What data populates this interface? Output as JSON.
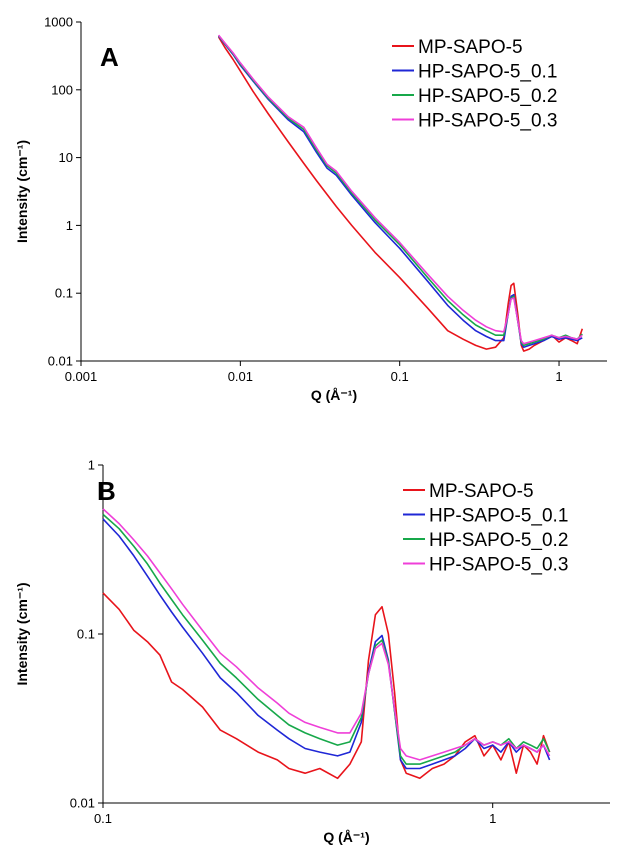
{
  "colors": {
    "MP-SAPO-5": "#e8141b",
    "HP-SAPO-5_0.1": "#1f27d6",
    "HP-SAPO-5_0.2": "#17a84a",
    "HP-SAPO-5_0.3": "#ef3fd8"
  },
  "chart_data": [
    {
      "type": "line",
      "panel": "A",
      "xscale": "log",
      "yscale": "log",
      "xlim": [
        0.001,
        2
      ],
      "ylim": [
        0.01,
        1000
      ],
      "xticks": [
        "0.001",
        "0.01",
        "0.1",
        "1"
      ],
      "yticks": [
        "0.01",
        "0.1",
        "1",
        "10",
        "100",
        "1000"
      ],
      "xlabel": "Q (Å⁻¹)",
      "ylabel": "Intensity (cm⁻¹)",
      "legend": "top-right",
      "series": [
        {
          "name": "MP-SAPO-5",
          "x": [
            0.0073,
            0.008,
            0.009,
            0.01,
            0.012,
            0.015,
            0.02,
            0.025,
            0.03,
            0.04,
            0.05,
            0.07,
            0.1,
            0.15,
            0.2,
            0.25,
            0.3,
            0.35,
            0.4,
            0.45,
            0.48,
            0.5,
            0.52,
            0.55,
            0.58,
            0.6,
            0.65,
            0.7,
            0.8,
            0.9,
            1.0,
            1.1,
            1.2,
            1.3,
            1.4
          ],
          "y": [
            600,
            420,
            280,
            190,
            95,
            44,
            17,
            8.2,
            4.6,
            1.9,
            1.0,
            0.4,
            0.17,
            0.06,
            0.028,
            0.021,
            0.017,
            0.015,
            0.016,
            0.022,
            0.07,
            0.13,
            0.14,
            0.05,
            0.017,
            0.014,
            0.015,
            0.017,
            0.02,
            0.024,
            0.019,
            0.022,
            0.02,
            0.018,
            0.03
          ]
        },
        {
          "name": "HP-SAPO-5_0.1",
          "x": [
            0.0073,
            0.008,
            0.009,
            0.01,
            0.012,
            0.015,
            0.02,
            0.025,
            0.03,
            0.035,
            0.04,
            0.05,
            0.07,
            0.1,
            0.15,
            0.2,
            0.25,
            0.3,
            0.35,
            0.4,
            0.45,
            0.48,
            0.5,
            0.52,
            0.55,
            0.58,
            0.6,
            0.65,
            0.7,
            0.8,
            0.9,
            1.0,
            1.1,
            1.2,
            1.3,
            1.4
          ],
          "y": [
            620,
            470,
            330,
            230,
            135,
            72,
            36,
            24,
            12,
            7,
            5.5,
            2.8,
            1.1,
            0.46,
            0.15,
            0.066,
            0.04,
            0.028,
            0.023,
            0.02,
            0.02,
            0.05,
            0.09,
            0.095,
            0.04,
            0.018,
            0.016,
            0.017,
            0.018,
            0.02,
            0.023,
            0.021,
            0.022,
            0.021,
            0.02,
            0.022
          ]
        },
        {
          "name": "HP-SAPO-5_0.2",
          "x": [
            0.0073,
            0.008,
            0.009,
            0.01,
            0.012,
            0.015,
            0.02,
            0.025,
            0.03,
            0.035,
            0.04,
            0.05,
            0.07,
            0.1,
            0.15,
            0.2,
            0.25,
            0.3,
            0.35,
            0.4,
            0.45,
            0.48,
            0.5,
            0.52,
            0.55,
            0.58,
            0.6,
            0.65,
            0.7,
            0.8,
            0.9,
            1.0,
            1.1,
            1.2,
            1.3,
            1.4
          ],
          "y": [
            630,
            480,
            340,
            240,
            140,
            75,
            38,
            26,
            13,
            7.6,
            5.9,
            3.0,
            1.2,
            0.52,
            0.17,
            0.078,
            0.048,
            0.034,
            0.028,
            0.024,
            0.024,
            0.05,
            0.085,
            0.09,
            0.04,
            0.019,
            0.017,
            0.018,
            0.019,
            0.021,
            0.024,
            0.022,
            0.024,
            0.022,
            0.021,
            0.025
          ]
        },
        {
          "name": "HP-SAPO-5_0.3",
          "x": [
            0.0073,
            0.008,
            0.009,
            0.01,
            0.012,
            0.015,
            0.02,
            0.025,
            0.03,
            0.035,
            0.04,
            0.05,
            0.07,
            0.1,
            0.15,
            0.2,
            0.25,
            0.3,
            0.35,
            0.4,
            0.45,
            0.48,
            0.5,
            0.52,
            0.55,
            0.58,
            0.6,
            0.65,
            0.7,
            0.8,
            0.9,
            1.0,
            1.1,
            1.2,
            1.3,
            1.4
          ],
          "y": [
            640,
            490,
            350,
            250,
            145,
            78,
            40,
            28,
            14,
            8.0,
            6.3,
            3.2,
            1.3,
            0.56,
            0.19,
            0.09,
            0.056,
            0.04,
            0.032,
            0.028,
            0.027,
            0.05,
            0.082,
            0.085,
            0.04,
            0.02,
            0.018,
            0.019,
            0.02,
            0.022,
            0.024,
            0.022,
            0.023,
            0.022,
            0.021,
            0.024
          ]
        }
      ]
    },
    {
      "type": "line",
      "panel": "B",
      "xscale": "log",
      "yscale": "log",
      "xlim": [
        0.1,
        2
      ],
      "ylim": [
        0.01,
        1
      ],
      "xticks": [
        "0.1",
        "1"
      ],
      "yticks": [
        "0.01",
        "0.1",
        "1"
      ],
      "xlabel": "Q (Å⁻¹)",
      "ylabel": "Intensity (cm⁻¹)",
      "legend": "top-right",
      "series": [
        {
          "name": "MP-SAPO-5",
          "x": [
            0.1,
            0.11,
            0.12,
            0.13,
            0.14,
            0.15,
            0.16,
            0.18,
            0.2,
            0.22,
            0.25,
            0.28,
            0.3,
            0.33,
            0.36,
            0.4,
            0.43,
            0.46,
            0.48,
            0.5,
            0.52,
            0.54,
            0.56,
            0.58,
            0.6,
            0.65,
            0.7,
            0.75,
            0.8,
            0.85,
            0.9,
            0.95,
            1.0,
            1.05,
            1.1,
            1.15,
            1.2,
            1.25,
            1.3,
            1.35,
            1.4
          ],
          "y": [
            0.175,
            0.14,
            0.105,
            0.09,
            0.075,
            0.052,
            0.047,
            0.037,
            0.027,
            0.024,
            0.02,
            0.018,
            0.016,
            0.015,
            0.016,
            0.014,
            0.017,
            0.023,
            0.07,
            0.13,
            0.145,
            0.1,
            0.045,
            0.018,
            0.015,
            0.014,
            0.016,
            0.017,
            0.019,
            0.023,
            0.025,
            0.019,
            0.022,
            0.018,
            0.023,
            0.015,
            0.022,
            0.02,
            0.017,
            0.025,
            0.02
          ]
        },
        {
          "name": "HP-SAPO-5_0.1",
          "x": [
            0.1,
            0.11,
            0.12,
            0.13,
            0.14,
            0.15,
            0.16,
            0.18,
            0.2,
            0.22,
            0.25,
            0.28,
            0.3,
            0.33,
            0.36,
            0.4,
            0.43,
            0.46,
            0.48,
            0.5,
            0.52,
            0.54,
            0.56,
            0.58,
            0.6,
            0.65,
            0.7,
            0.75,
            0.8,
            0.85,
            0.9,
            0.95,
            1.0,
            1.05,
            1.1,
            1.15,
            1.2,
            1.25,
            1.3,
            1.35,
            1.4
          ],
          "y": [
            0.48,
            0.38,
            0.29,
            0.22,
            0.17,
            0.135,
            0.11,
            0.077,
            0.055,
            0.045,
            0.033,
            0.027,
            0.024,
            0.021,
            0.02,
            0.019,
            0.02,
            0.03,
            0.06,
            0.09,
            0.098,
            0.07,
            0.035,
            0.018,
            0.016,
            0.016,
            0.017,
            0.018,
            0.019,
            0.021,
            0.024,
            0.021,
            0.022,
            0.02,
            0.023,
            0.02,
            0.022,
            0.021,
            0.02,
            0.022,
            0.018
          ]
        },
        {
          "name": "HP-SAPO-5_0.2",
          "x": [
            0.1,
            0.11,
            0.12,
            0.13,
            0.14,
            0.15,
            0.16,
            0.18,
            0.2,
            0.22,
            0.25,
            0.28,
            0.3,
            0.33,
            0.36,
            0.4,
            0.43,
            0.46,
            0.48,
            0.5,
            0.52,
            0.54,
            0.56,
            0.58,
            0.6,
            0.65,
            0.7,
            0.75,
            0.8,
            0.85,
            0.9,
            0.95,
            1.0,
            1.05,
            1.1,
            1.15,
            1.2,
            1.25,
            1.3,
            1.35,
            1.4
          ],
          "y": [
            0.51,
            0.42,
            0.33,
            0.26,
            0.2,
            0.16,
            0.13,
            0.092,
            0.067,
            0.055,
            0.041,
            0.033,
            0.029,
            0.026,
            0.024,
            0.022,
            0.023,
            0.032,
            0.058,
            0.085,
            0.092,
            0.068,
            0.035,
            0.019,
            0.017,
            0.017,
            0.018,
            0.019,
            0.02,
            0.022,
            0.024,
            0.022,
            0.023,
            0.022,
            0.024,
            0.021,
            0.023,
            0.022,
            0.021,
            0.024,
            0.02
          ]
        },
        {
          "name": "HP-SAPO-5_0.3",
          "x": [
            0.1,
            0.11,
            0.12,
            0.13,
            0.14,
            0.15,
            0.16,
            0.18,
            0.2,
            0.22,
            0.25,
            0.28,
            0.3,
            0.33,
            0.36,
            0.4,
            0.43,
            0.46,
            0.48,
            0.5,
            0.52,
            0.54,
            0.56,
            0.58,
            0.6,
            0.65,
            0.7,
            0.75,
            0.8,
            0.85,
            0.9,
            0.95,
            1.0,
            1.05,
            1.1,
            1.15,
            1.2,
            1.25,
            1.3,
            1.35,
            1.4
          ],
          "y": [
            0.55,
            0.45,
            0.36,
            0.29,
            0.23,
            0.185,
            0.15,
            0.105,
            0.077,
            0.064,
            0.048,
            0.039,
            0.034,
            0.03,
            0.028,
            0.026,
            0.026,
            0.034,
            0.058,
            0.082,
            0.088,
            0.066,
            0.036,
            0.021,
            0.019,
            0.018,
            0.019,
            0.02,
            0.021,
            0.022,
            0.024,
            0.022,
            0.023,
            0.022,
            0.023,
            0.021,
            0.022,
            0.021,
            0.02,
            0.022,
            0.019
          ]
        }
      ]
    }
  ]
}
